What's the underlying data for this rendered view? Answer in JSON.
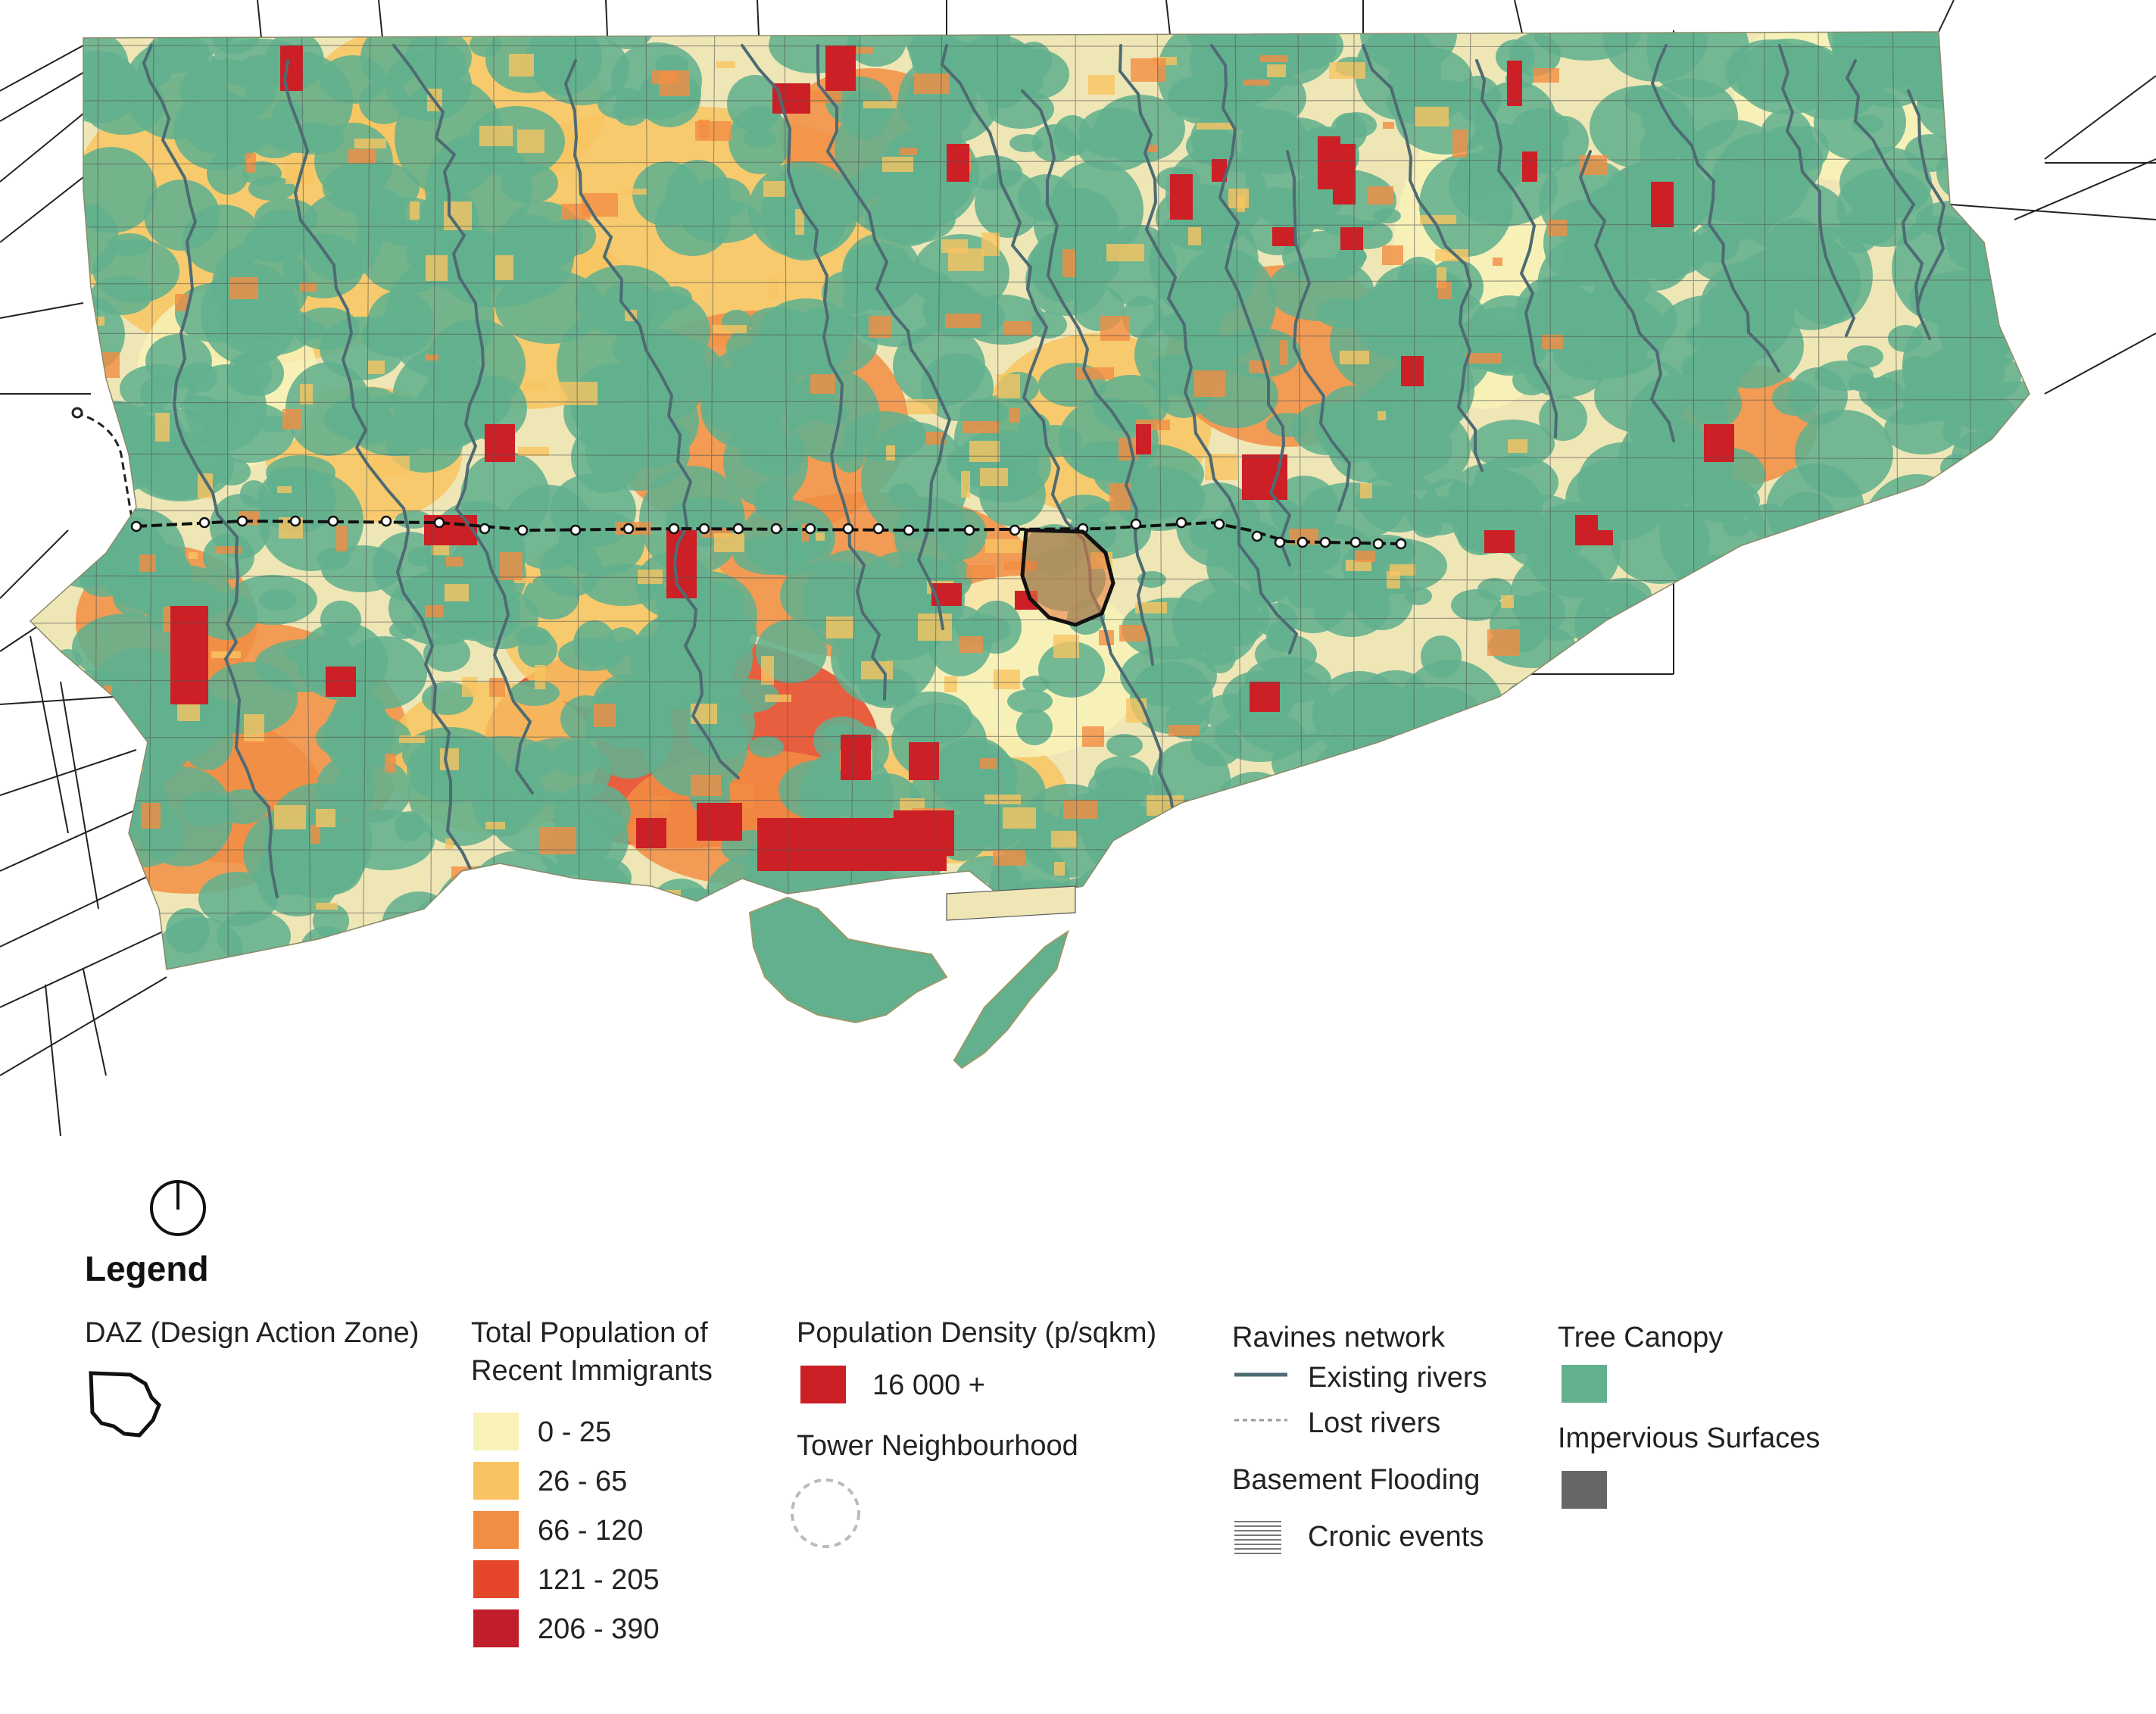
{
  "legend": {
    "title": "Legend",
    "daz": {
      "label": "DAZ (Design Action Zone)"
    },
    "immigrants": {
      "title_line1": "Total Population of",
      "title_line2": "Recent Immigrants",
      "classes": [
        {
          "label": "0 - 25",
          "color": "#f8f2b8"
        },
        {
          "label": "26 - 65",
          "color": "#f8c461"
        },
        {
          "label": "66 - 120",
          "color": "#f28d44"
        },
        {
          "label": "121 - 205",
          "color": "#e6462a"
        },
        {
          "label": "206 - 390",
          "color": "#c01e2b"
        }
      ]
    },
    "density": {
      "title": "Population Density (p/sqkm)",
      "label": "16 000 +",
      "color": "#cc1f26"
    },
    "tower": {
      "title": "Tower Neighbourhood"
    },
    "ravines": {
      "title": "Ravines network",
      "existing": "Existing rivers",
      "lost": "Lost rivers",
      "existing_color": "#4e6b73"
    },
    "flooding": {
      "title": "Basement Flooding",
      "label": "Cronic events"
    },
    "canopy": {
      "title": "Tree Canopy",
      "color": "#62b08e"
    },
    "impervious": {
      "title": "Impervious Surfaces",
      "color": "#666666"
    }
  },
  "map": {
    "water_color": "#ffffff",
    "road_color": "#222222",
    "land_color": "#efe6b6",
    "icons": [
      "north-arrow-icon"
    ]
  }
}
